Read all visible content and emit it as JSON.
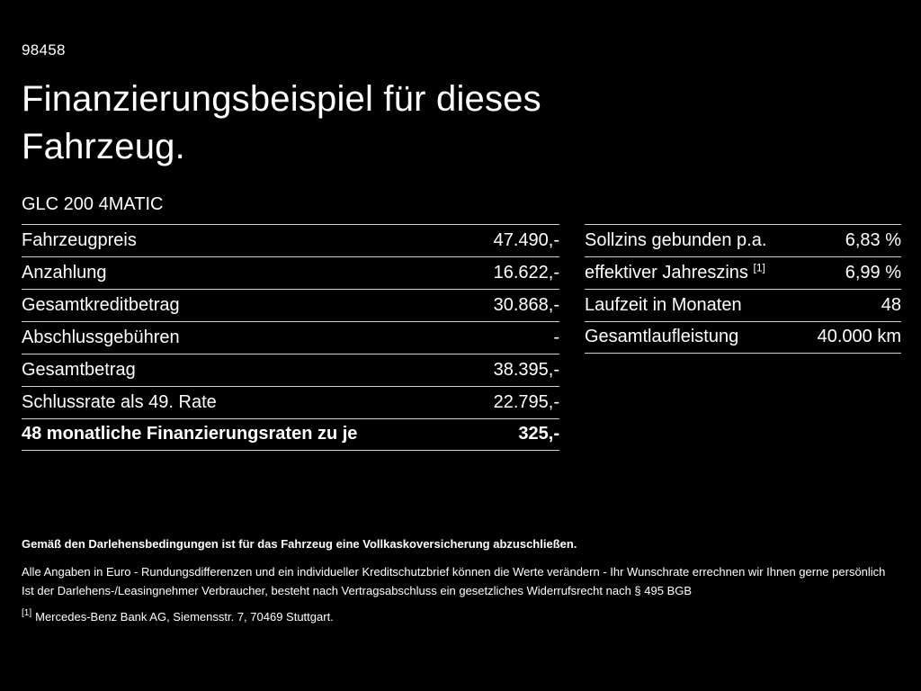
{
  "header": {
    "id_number": "98458",
    "title": "Finanzierungsbeispiel für dieses Fahrzeug.",
    "model": "GLC 200 4MATIC"
  },
  "left_table": {
    "rows": [
      {
        "label": "Fahrzeugpreis",
        "value": "47.490,-"
      },
      {
        "label": "Anzahlung",
        "value": "16.622,-"
      },
      {
        "label": "Gesamtkreditbetrag",
        "value": "30.868,-"
      },
      {
        "label": "Abschlussgebühren",
        "value": "-"
      },
      {
        "label": "Gesamtbetrag",
        "value": "38.395,-"
      },
      {
        "label": "Schlussrate als 49. Rate",
        "value": "22.795,-"
      }
    ],
    "total_row": {
      "label": "48 monatliche Finanzierungsraten zu je",
      "value": "325,-"
    }
  },
  "right_table": {
    "rows": [
      {
        "label": "Sollzins gebunden p.a.",
        "sup": "",
        "value": "6,83 %"
      },
      {
        "label": "effektiver Jahreszins",
        "sup": "[1]",
        "value": "6,99 %"
      },
      {
        "label": "Laufzeit in Monaten",
        "sup": "",
        "value": "48"
      },
      {
        "label": "Gesamtlaufleistung",
        "sup": "",
        "value": "40.000 km"
      }
    ]
  },
  "footer": {
    "bold_note": "Gemäß den Darlehensbedingungen ist für das Fahrzeug eine Vollkaskoversicherung abzuschließen.",
    "note_line1": "Alle Angaben in Euro - Rundungsdifferenzen und ein individueller Kreditschutzbrief können die Werte verändern - Ihr Wunschrate errechnen wir Ihnen gerne persönlich",
    "note_line2": "Ist der Darlehens-/Leasingnehmer Verbraucher, besteht nach Vertragsabschluss ein gesetzliches Widerrufsrecht nach § 495 BGB",
    "footnote_marker": "[1]",
    "footnote_text": "Mercedes-Benz Bank AG, Siemensstr. 7, 70469 Stuttgart."
  },
  "colors": {
    "background": "#000000",
    "text": "#ffffff",
    "divider": "#cfcfcf"
  }
}
